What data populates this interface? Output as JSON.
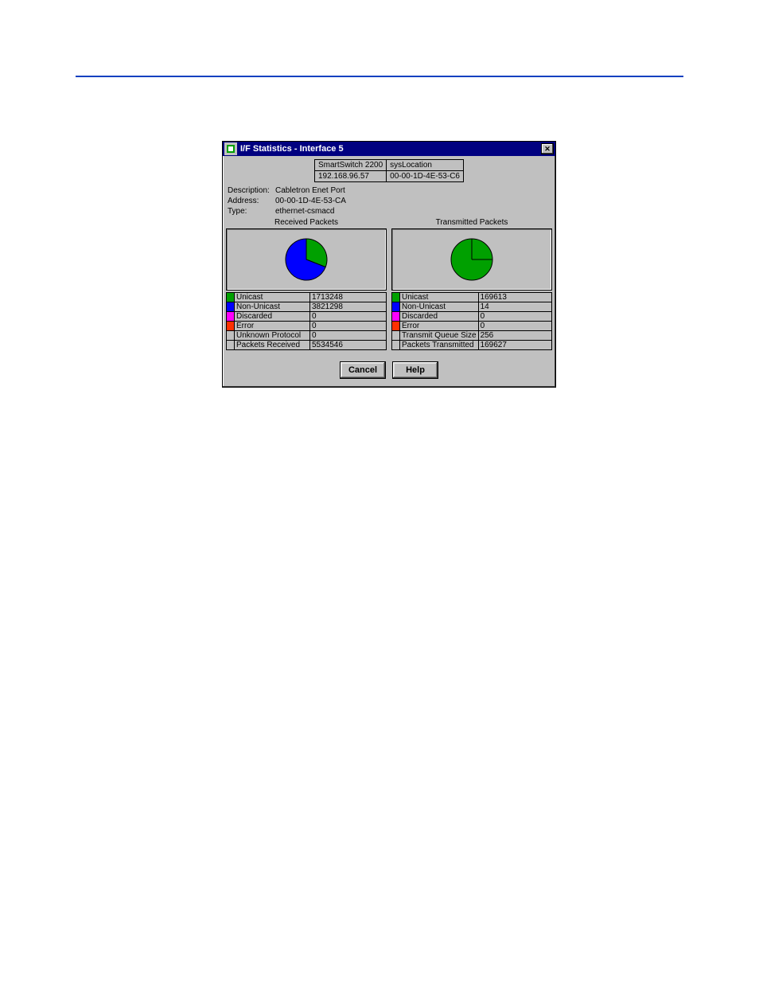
{
  "window": {
    "title": "I/F Statistics - Interface 5",
    "background_color": "#c0c0c0",
    "titlebar_color": "#000080",
    "titlebar_text_color": "#ffffff"
  },
  "info_grid": {
    "rows": [
      [
        "SmartSwitch 2200",
        "sysLocation"
      ],
      [
        "192.168.96.57",
        "00-00-1D-4E-53-C6"
      ]
    ]
  },
  "meta": {
    "description_label": "Description:",
    "description_value": "Cabletron Enet Port",
    "address_label": "Address:",
    "address_value": "00-00-1D-4E-53-CA",
    "type_label": "Type:",
    "type_value": "ethernet-csmacd"
  },
  "colors": {
    "unicast": "#00a000",
    "non_unicast": "#0000ff",
    "discarded": "#ff00ff",
    "error": "#ff3000",
    "pie_border": "#000000"
  },
  "received": {
    "title": "Received Packets",
    "pie": {
      "type": "pie",
      "slices": [
        {
          "label": "Unicast",
          "value": 1713248,
          "color": "#00a000"
        },
        {
          "label": "Non-Unicast",
          "value": 3821298,
          "color": "#0000ff"
        }
      ]
    },
    "rows": [
      {
        "swatch": "#00a000",
        "label": "Unicast",
        "value": "1713248"
      },
      {
        "swatch": "#0000ff",
        "label": "Non-Unicast",
        "value": "3821298"
      },
      {
        "swatch": "#ff00ff",
        "label": "Discarded",
        "value": "0"
      },
      {
        "swatch": "#ff3000",
        "label": "Error",
        "value": "0"
      },
      {
        "swatch": null,
        "label": "Unknown Protocol",
        "value": "0"
      },
      {
        "swatch": null,
        "label": "Packets Received",
        "value": "5534546"
      }
    ]
  },
  "transmitted": {
    "title": "Transmitted Packets",
    "pie": {
      "type": "pie",
      "slices": [
        {
          "label": "Unicast",
          "value": 169613,
          "color": "#00a000"
        },
        {
          "label": "Non-Unicast",
          "value": 14,
          "color": "#0000ff"
        }
      ]
    },
    "rows": [
      {
        "swatch": "#00a000",
        "label": "Unicast",
        "value": "169613"
      },
      {
        "swatch": "#0000ff",
        "label": "Non-Unicast",
        "value": "14"
      },
      {
        "swatch": "#ff00ff",
        "label": "Discarded",
        "value": "0"
      },
      {
        "swatch": "#ff3000",
        "label": "Error",
        "value": "0"
      },
      {
        "swatch": null,
        "label": "Transmit Queue Size",
        "value": "256"
      },
      {
        "swatch": null,
        "label": "Packets Transmitted",
        "value": "169627"
      }
    ]
  },
  "buttons": {
    "cancel": "Cancel",
    "help": "Help"
  }
}
